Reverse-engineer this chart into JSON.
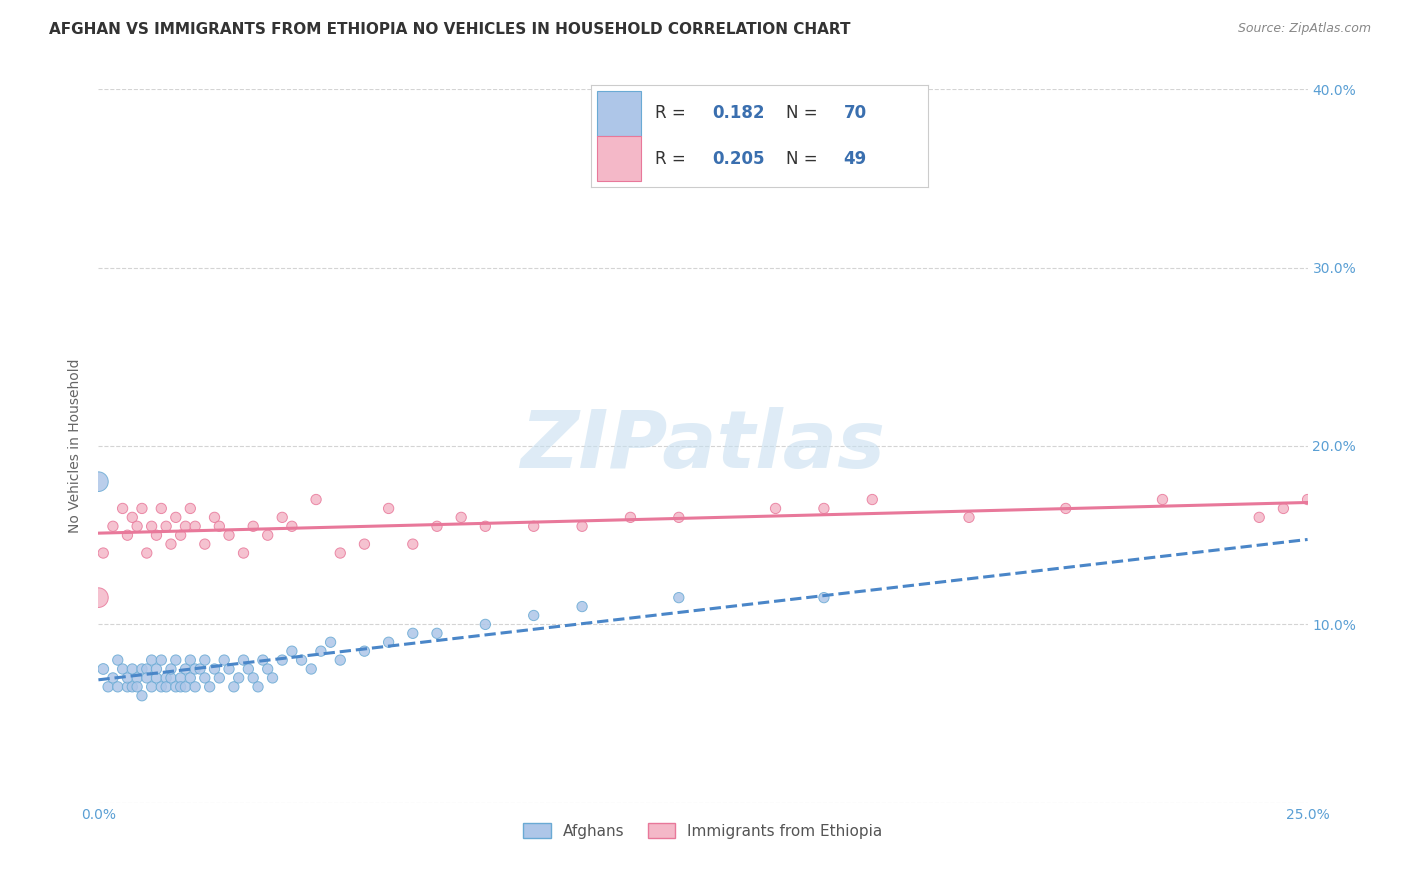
{
  "title": "AFGHAN VS IMMIGRANTS FROM ETHIOPIA NO VEHICLES IN HOUSEHOLD CORRELATION CHART",
  "source": "Source: ZipAtlas.com",
  "ylabel": "No Vehicles in Household",
  "xlim": [
    0.0,
    0.25
  ],
  "ylim": [
    0.0,
    0.4
  ],
  "xticks": [
    0.0,
    0.05,
    0.1,
    0.15,
    0.2,
    0.25
  ],
  "yticks": [
    0.0,
    0.1,
    0.2,
    0.3,
    0.4
  ],
  "xticklabels_bottom": [
    "0.0%",
    "",
    "",
    "",
    "",
    "25.0%"
  ],
  "yticklabels_left": [
    "",
    "",
    "",
    "",
    ""
  ],
  "yticklabels_right": [
    "",
    "10.0%",
    "20.0%",
    "30.0%",
    "40.0%"
  ],
  "background_color": "#ffffff",
  "grid_color": "#d0d0d0",
  "watermark_text": "ZIPatlas",
  "watermark_color": "#c8dff0",
  "series": [
    {
      "name": "Afghans",
      "color": "#aec6e8",
      "edge_color": "#6aaad4",
      "line_color": "#4a86c8",
      "line_style": "--",
      "R": 0.182,
      "N": 70,
      "x": [
        0.001,
        0.002,
        0.003,
        0.004,
        0.004,
        0.005,
        0.006,
        0.006,
        0.007,
        0.007,
        0.008,
        0.008,
        0.009,
        0.009,
        0.01,
        0.01,
        0.011,
        0.011,
        0.012,
        0.012,
        0.013,
        0.013,
        0.014,
        0.014,
        0.015,
        0.015,
        0.016,
        0.016,
        0.017,
        0.017,
        0.018,
        0.018,
        0.019,
        0.019,
        0.02,
        0.02,
        0.021,
        0.022,
        0.022,
        0.023,
        0.024,
        0.025,
        0.026,
        0.027,
        0.028,
        0.029,
        0.03,
        0.031,
        0.032,
        0.033,
        0.034,
        0.035,
        0.036,
        0.038,
        0.04,
        0.042,
        0.044,
        0.046,
        0.048,
        0.05,
        0.055,
        0.06,
        0.065,
        0.07,
        0.08,
        0.09,
        0.1,
        0.12,
        0.15,
        0.0
      ],
      "y": [
        0.075,
        0.065,
        0.07,
        0.065,
        0.08,
        0.075,
        0.065,
        0.07,
        0.065,
        0.075,
        0.07,
        0.065,
        0.075,
        0.06,
        0.075,
        0.07,
        0.065,
        0.08,
        0.07,
        0.075,
        0.065,
        0.08,
        0.07,
        0.065,
        0.07,
        0.075,
        0.065,
        0.08,
        0.07,
        0.065,
        0.075,
        0.065,
        0.08,
        0.07,
        0.075,
        0.065,
        0.075,
        0.07,
        0.08,
        0.065,
        0.075,
        0.07,
        0.08,
        0.075,
        0.065,
        0.07,
        0.08,
        0.075,
        0.07,
        0.065,
        0.08,
        0.075,
        0.07,
        0.08,
        0.085,
        0.08,
        0.075,
        0.085,
        0.09,
        0.08,
        0.085,
        0.09,
        0.095,
        0.095,
        0.1,
        0.105,
        0.11,
        0.115,
        0.115,
        0.18
      ],
      "sizes": [
        60,
        55,
        55,
        55,
        55,
        55,
        55,
        55,
        55,
        55,
        55,
        55,
        55,
        55,
        55,
        55,
        55,
        55,
        55,
        55,
        55,
        55,
        55,
        55,
        55,
        55,
        55,
        55,
        55,
        55,
        55,
        55,
        55,
        55,
        55,
        55,
        55,
        55,
        55,
        55,
        55,
        55,
        55,
        55,
        55,
        55,
        55,
        55,
        55,
        55,
        55,
        55,
        55,
        55,
        55,
        55,
        55,
        55,
        55,
        55,
        55,
        55,
        55,
        55,
        55,
        55,
        55,
        55,
        55,
        200
      ]
    },
    {
      "name": "Immigrants from Ethiopia",
      "color": "#f4b8c8",
      "edge_color": "#e8789a",
      "line_color": "#e8789a",
      "line_style": "-",
      "R": 0.205,
      "N": 49,
      "x": [
        0.001,
        0.003,
        0.005,
        0.006,
        0.007,
        0.008,
        0.009,
        0.01,
        0.011,
        0.012,
        0.013,
        0.014,
        0.015,
        0.016,
        0.017,
        0.018,
        0.019,
        0.02,
        0.022,
        0.024,
        0.025,
        0.027,
        0.03,
        0.032,
        0.035,
        0.038,
        0.04,
        0.045,
        0.05,
        0.055,
        0.06,
        0.065,
        0.07,
        0.075,
        0.08,
        0.09,
        0.1,
        0.11,
        0.12,
        0.14,
        0.15,
        0.16,
        0.18,
        0.2,
        0.22,
        0.24,
        0.245,
        0.25,
        0.0
      ],
      "y": [
        0.14,
        0.155,
        0.165,
        0.15,
        0.16,
        0.155,
        0.165,
        0.14,
        0.155,
        0.15,
        0.165,
        0.155,
        0.145,
        0.16,
        0.15,
        0.155,
        0.165,
        0.155,
        0.145,
        0.16,
        0.155,
        0.15,
        0.14,
        0.155,
        0.15,
        0.16,
        0.155,
        0.17,
        0.14,
        0.145,
        0.165,
        0.145,
        0.155,
        0.16,
        0.155,
        0.155,
        0.155,
        0.16,
        0.16,
        0.165,
        0.165,
        0.17,
        0.16,
        0.165,
        0.17,
        0.16,
        0.165,
        0.17,
        0.115
      ],
      "sizes": [
        55,
        55,
        55,
        55,
        55,
        55,
        55,
        55,
        55,
        55,
        55,
        55,
        55,
        55,
        55,
        55,
        55,
        55,
        55,
        55,
        55,
        55,
        55,
        55,
        55,
        55,
        55,
        55,
        55,
        55,
        55,
        55,
        55,
        55,
        55,
        55,
        55,
        55,
        55,
        55,
        55,
        55,
        55,
        55,
        55,
        55,
        55,
        55,
        200
      ]
    }
  ],
  "legend_box_colors": [
    "#aec6e8",
    "#f4b8c8"
  ],
  "legend_edge_colors": [
    "#6aaad4",
    "#e8789a"
  ],
  "legend_R_values": [
    "0.182",
    "0.205"
  ],
  "legend_N_values": [
    "70",
    "49"
  ],
  "title_fontsize": 11,
  "source_fontsize": 9,
  "tick_label_color": "#5a9fd4",
  "bottom_legend_labels": [
    "Afghans",
    "Immigrants from Ethiopia"
  ],
  "bottom_legend_colors": [
    "#aec6e8",
    "#f4b8c8"
  ],
  "bottom_legend_edge_colors": [
    "#6aaad4",
    "#e8789a"
  ]
}
